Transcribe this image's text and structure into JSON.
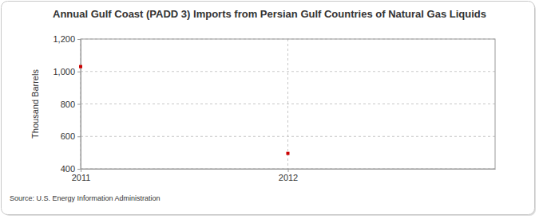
{
  "chart_data": {
    "type": "scatter",
    "title": "Annual Gulf Coast (PADD 3) Imports from Persian Gulf Countries of Natural Gas Liquids",
    "y_label": "Thousand Barrels",
    "source": "Source: U.S. Energy Information Administration",
    "x": [
      2011,
      2012
    ],
    "values": [
      1030,
      495
    ],
    "color": "#cc0000",
    "marker": "square",
    "xlim": [
      2011,
      2013
    ],
    "xticks": [
      2011,
      2012
    ],
    "ylim": [
      400,
      1200
    ],
    "yticks": [
      400,
      600,
      800,
      {
        "value": 1000,
        "label": "1,000"
      },
      {
        "value": 1200,
        "label": "1,200"
      }
    ],
    "grid": true
  }
}
